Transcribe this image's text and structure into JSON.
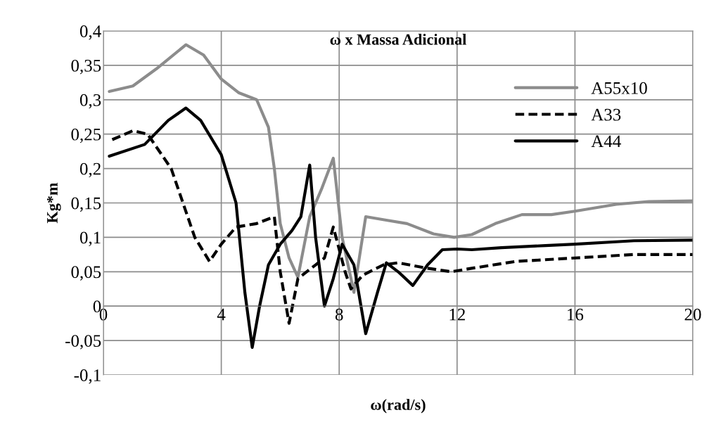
{
  "chart_data": {
    "type": "line",
    "title": "ω x Massa Adicional",
    "xlabel": "ω(rad/s)",
    "ylabel": "Kg*m",
    "xlim": [
      0,
      20
    ],
    "xticks": [
      0,
      4,
      8,
      12,
      16,
      20
    ],
    "ylim": [
      -0.1,
      0.4
    ],
    "yticks": [
      {
        "value": -0.1,
        "label": "-0,1"
      },
      {
        "value": -0.05,
        "label": "-0,05"
      },
      {
        "value": 0,
        "label": "0"
      },
      {
        "value": 0.05,
        "label": "0,05"
      },
      {
        "value": 0.1,
        "label": "0,1"
      },
      {
        "value": 0.15,
        "label": "0,15"
      },
      {
        "value": 0.2,
        "label": "0,2"
      },
      {
        "value": 0.25,
        "label": "0,25"
      },
      {
        "value": 0.3,
        "label": "0,3"
      },
      {
        "value": 0.35,
        "label": "0,35"
      },
      {
        "value": 0.4,
        "label": "0,4"
      }
    ],
    "grid": true,
    "legend": "top right",
    "marker": "none",
    "series": [
      {
        "name": "A55x10",
        "color": "#8c8c8c",
        "line_style": "solid",
        "x": [
          0.2,
          1.0,
          1.8,
          2.8,
          3.4,
          4.0,
          4.6,
          5.2,
          5.6,
          5.8,
          6.0,
          6.3,
          6.6,
          7.0,
          7.4,
          7.8,
          8.1,
          8.5,
          8.9,
          9.6,
          10.3,
          11.2,
          11.9,
          12.5,
          13.3,
          14.2,
          15.2,
          16.0,
          17.4,
          18.5,
          20.0
        ],
        "values": [
          0.312,
          0.32,
          0.345,
          0.38,
          0.365,
          0.33,
          0.31,
          0.3,
          0.26,
          0.2,
          0.12,
          0.07,
          0.042,
          0.13,
          0.17,
          0.215,
          0.1,
          0.02,
          0.13,
          0.125,
          0.12,
          0.105,
          0.1,
          0.104,
          0.12,
          0.133,
          0.133,
          0.138,
          0.148,
          0.152,
          0.153
        ]
      },
      {
        "name": "A33",
        "color": "#000000",
        "line_style": "dashed",
        "x": [
          0.3,
          1.0,
          1.5,
          2.3,
          3.1,
          3.6,
          4.0,
          4.5,
          5.2,
          5.8,
          6.0,
          6.3,
          6.6,
          7.2,
          7.5,
          7.8,
          8.2,
          8.4,
          8.8,
          9.5,
          10.0,
          11.0,
          11.8,
          12.5,
          14.0,
          16.0,
          18.0,
          20.0
        ],
        "values": [
          0.242,
          0.255,
          0.25,
          0.2,
          0.1,
          0.065,
          0.09,
          0.115,
          0.12,
          0.13,
          0.05,
          -0.025,
          0.04,
          0.06,
          0.07,
          0.115,
          0.05,
          0.025,
          0.045,
          0.06,
          0.063,
          0.055,
          0.05,
          0.055,
          0.065,
          0.07,
          0.075,
          0.075
        ]
      },
      {
        "name": "A44",
        "color": "#000000",
        "line_style": "solid",
        "x": [
          0.2,
          1.4,
          2.2,
          2.8,
          3.3,
          4.0,
          4.5,
          4.8,
          5.05,
          5.3,
          5.6,
          6.0,
          6.4,
          6.7,
          7.0,
          7.2,
          7.5,
          7.8,
          8.1,
          8.5,
          8.9,
          9.3,
          9.6,
          10.0,
          10.5,
          11.0,
          11.5,
          12.0,
          12.5,
          13.5,
          15.0,
          16.0,
          18.0,
          20.0
        ],
        "values": [
          0.218,
          0.235,
          0.27,
          0.288,
          0.27,
          0.22,
          0.15,
          0.02,
          -0.06,
          0.0,
          0.06,
          0.09,
          0.11,
          0.13,
          0.205,
          0.1,
          0.0,
          0.04,
          0.09,
          0.06,
          -0.04,
          0.02,
          0.063,
          0.05,
          0.03,
          0.06,
          0.082,
          0.083,
          0.082,
          0.085,
          0.088,
          0.09,
          0.095,
          0.096
        ]
      }
    ]
  }
}
